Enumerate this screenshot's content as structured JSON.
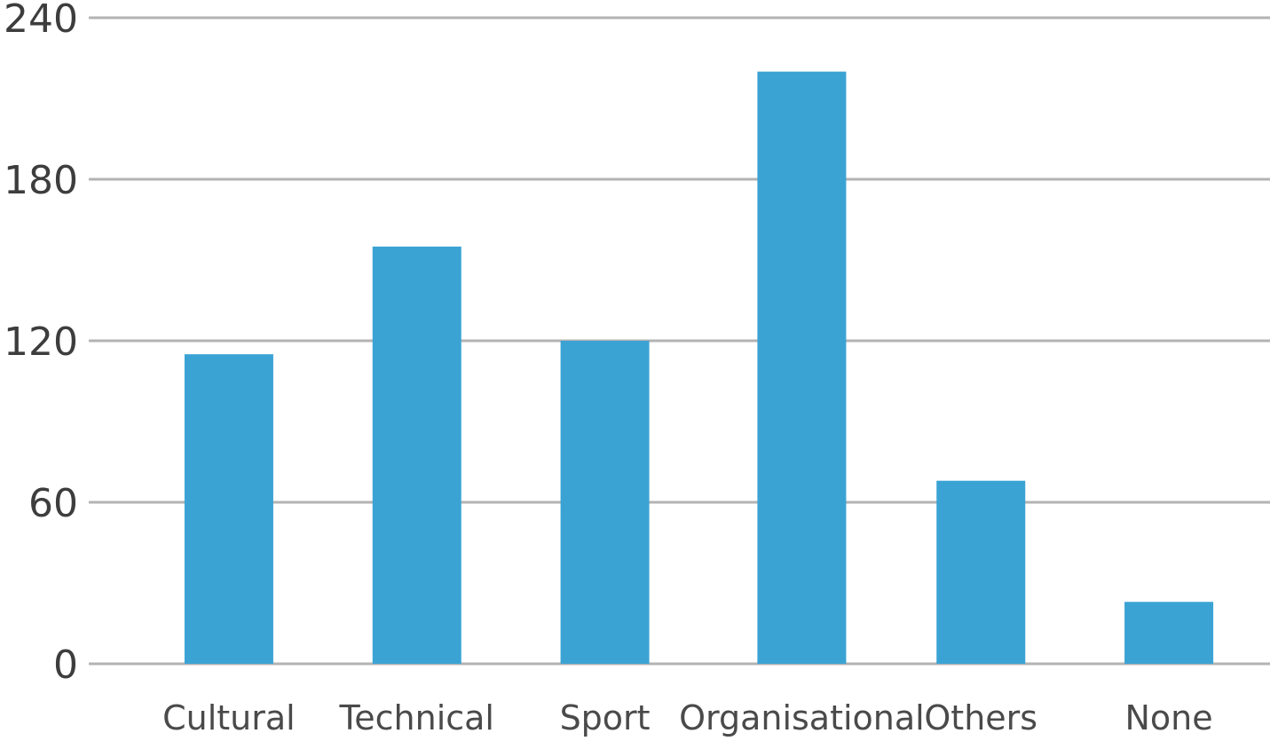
{
  "chart_data": {
    "type": "bar",
    "categories": [
      "Cultural",
      "Technical",
      "Sport",
      "Organisational",
      "Others",
      "None"
    ],
    "values": [
      115,
      155,
      120,
      220,
      68,
      23
    ],
    "ylim": [
      0,
      240
    ],
    "yticks": [
      "0",
      "60",
      "120",
      "180",
      "240"
    ],
    "grid": true,
    "bar_color": "#3ba3d4",
    "grid_color": "#b3b3b3"
  }
}
